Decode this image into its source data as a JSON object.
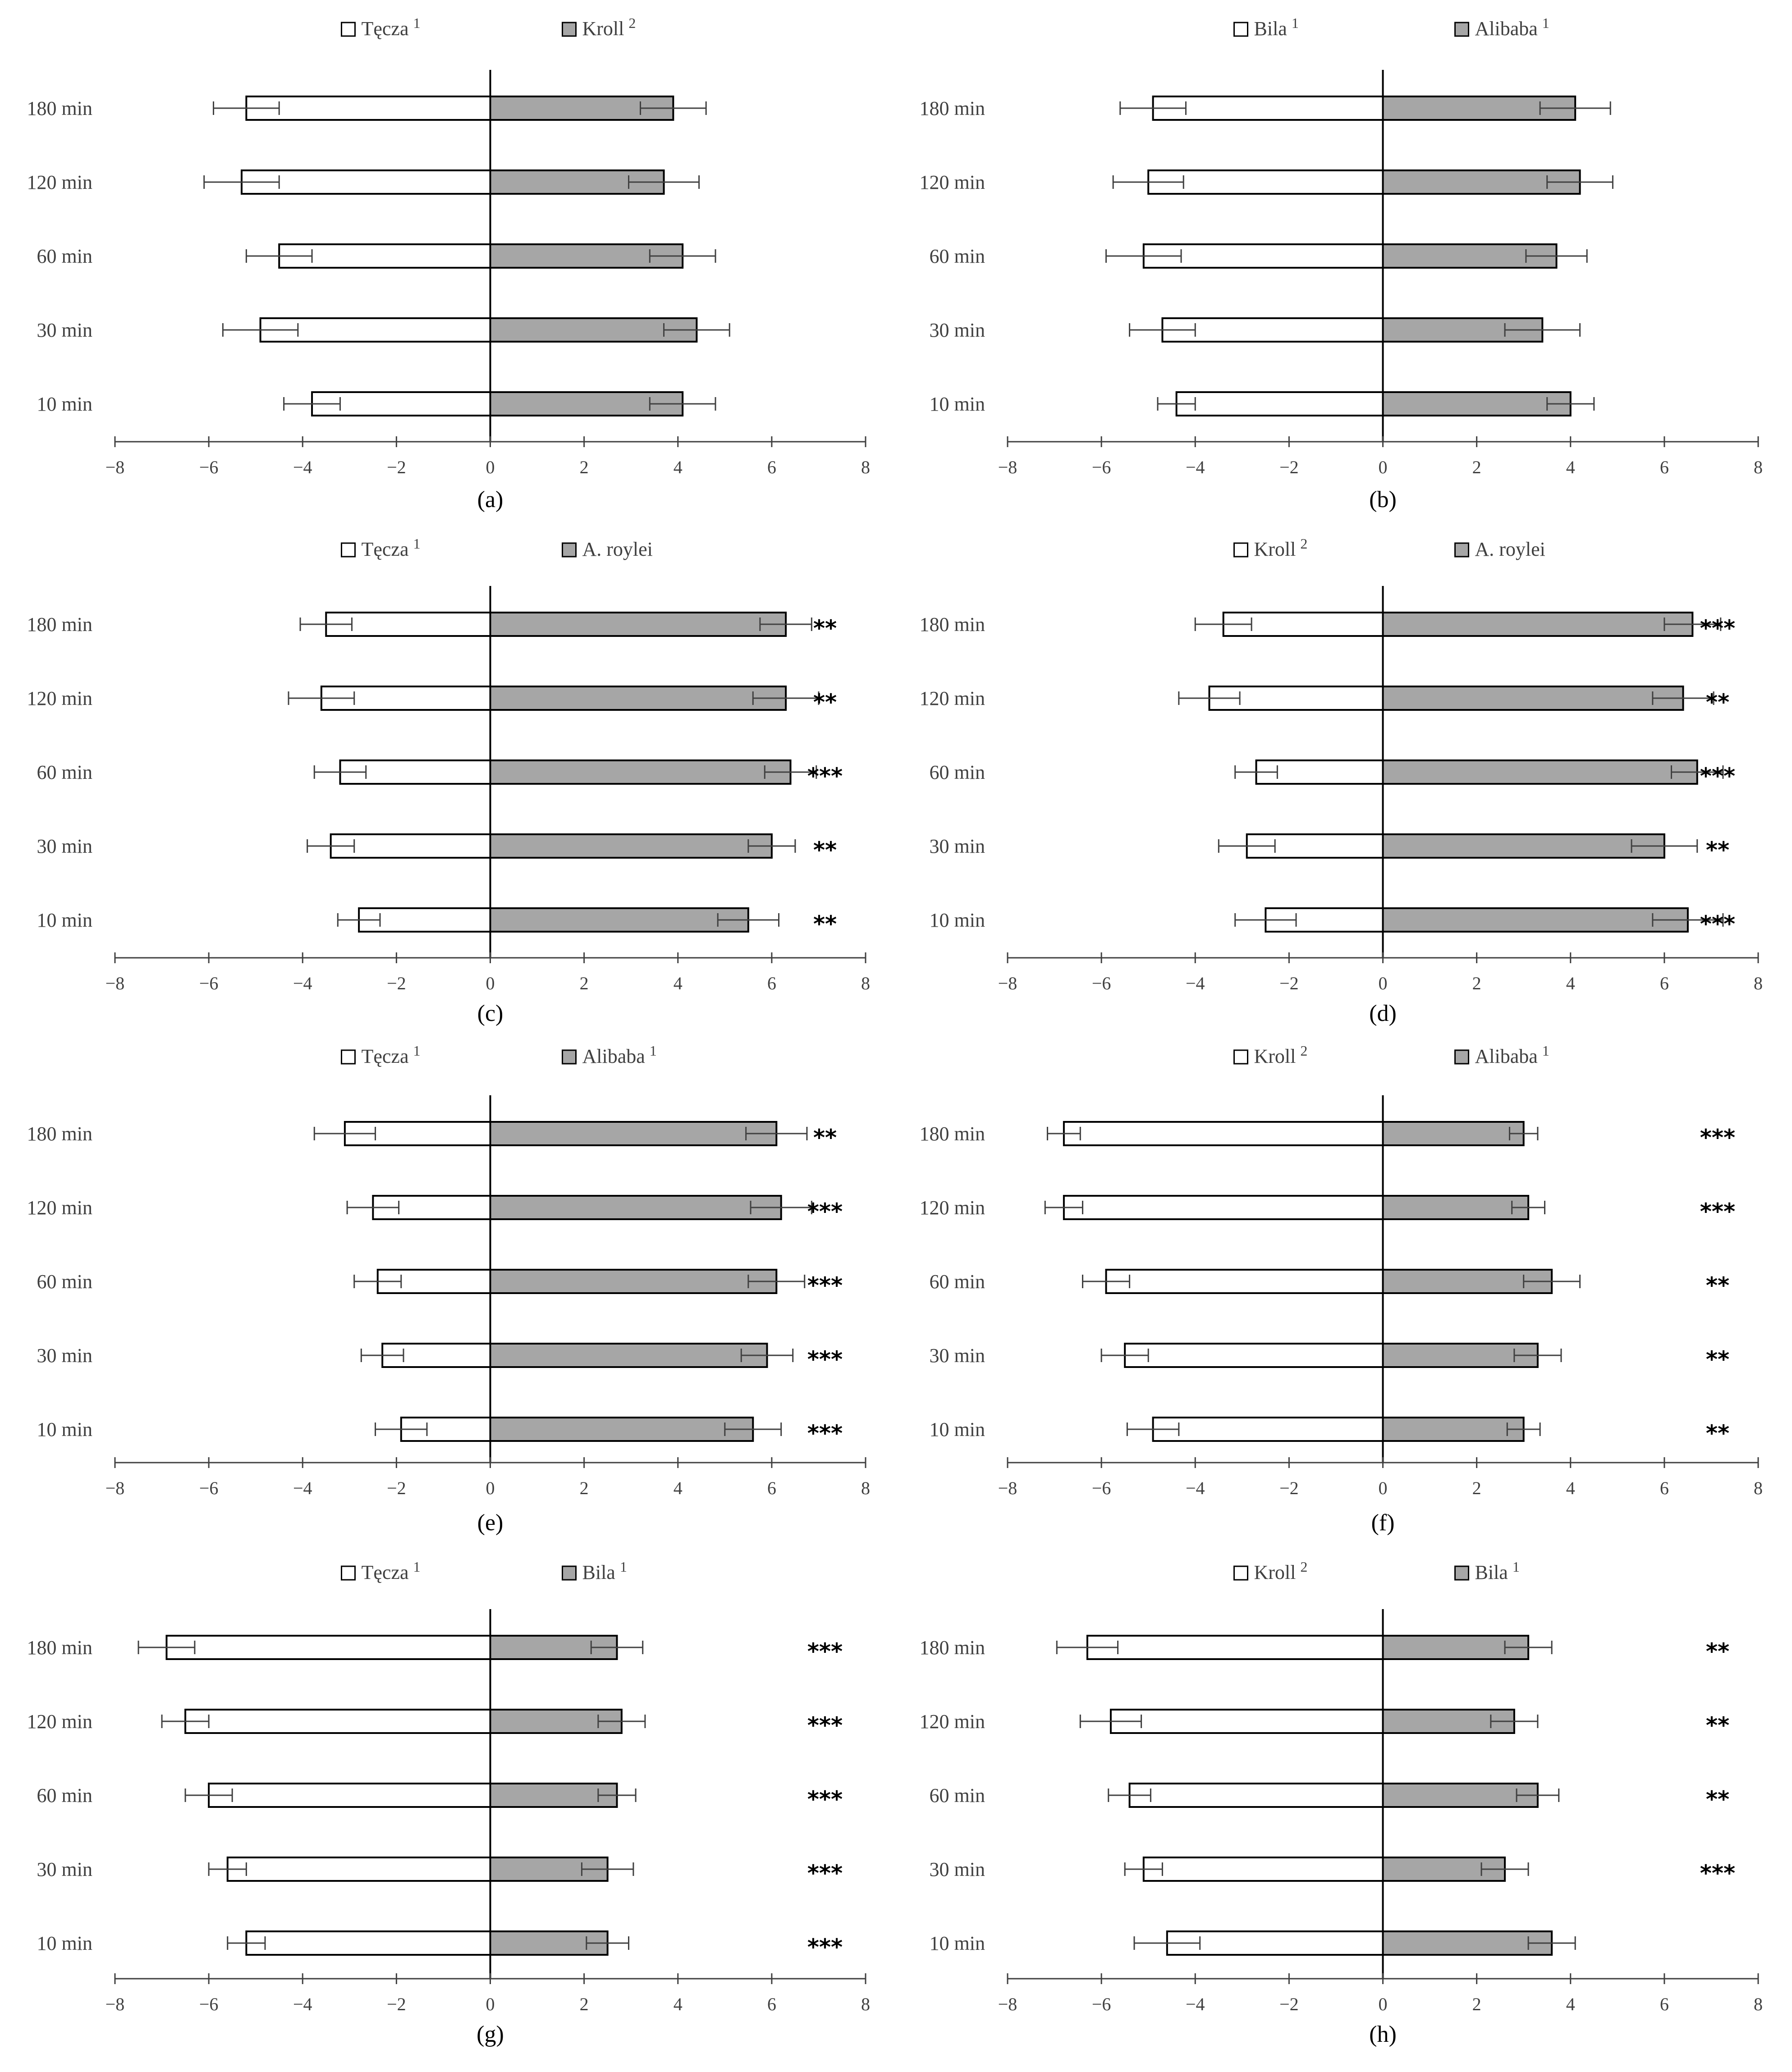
{
  "chart_data": [
    {
      "type": "bar",
      "orientation": "horizontal-diverging",
      "panel": "(a)",
      "categories": [
        "180 min",
        "120 min",
        "60 min",
        "30 min",
        "10 min"
      ],
      "series": [
        {
          "name": "Tęcza",
          "sup": "1",
          "fill": "white",
          "values": [
            -5.2,
            -5.3,
            -4.5,
            -4.9,
            -3.8
          ],
          "errors": [
            0.7,
            0.8,
            0.7,
            0.8,
            0.6
          ]
        },
        {
          "name": "Kroll",
          "sup": "2",
          "fill": "gray",
          "values": [
            3.9,
            3.7,
            4.1,
            4.4,
            4.1
          ],
          "errors": [
            0.7,
            0.75,
            0.7,
            0.7,
            0.7
          ]
        }
      ],
      "significance": [
        "",
        "",
        "",
        "",
        ""
      ],
      "xlim": [
        -8,
        8
      ],
      "xticks": [
        "−8",
        "−6",
        "−4",
        "−2",
        "0",
        "2",
        "4",
        "6",
        "8"
      ],
      "grid": false,
      "legend": "top-center"
    },
    {
      "type": "bar",
      "orientation": "horizontal-diverging",
      "panel": "(b)",
      "categories": [
        "180 min",
        "120 min",
        "60 min",
        "30 min",
        "10 min"
      ],
      "series": [
        {
          "name": "Bila",
          "sup": "1",
          "fill": "white",
          "values": [
            -4.9,
            -5.0,
            -5.1,
            -4.7,
            -4.4
          ],
          "errors": [
            0.7,
            0.75,
            0.8,
            0.7,
            0.4
          ]
        },
        {
          "name": "Alibaba",
          "sup": "1",
          "fill": "gray",
          "values": [
            4.1,
            4.2,
            3.7,
            3.4,
            4.0
          ],
          "errors": [
            0.75,
            0.7,
            0.65,
            0.8,
            0.5
          ]
        }
      ],
      "significance": [
        "",
        "",
        "",
        "",
        ""
      ],
      "xlim": [
        -8,
        8
      ],
      "xticks": [
        "−8",
        "−6",
        "−4",
        "−2",
        "0",
        "2",
        "4",
        "6",
        "8"
      ],
      "grid": false,
      "legend": "top-center"
    },
    {
      "type": "bar",
      "orientation": "horizontal-diverging",
      "panel": "(c)",
      "categories": [
        "180 min",
        "120 min",
        "60 min",
        "30 min",
        "10 min"
      ],
      "series": [
        {
          "name": "Tęcza",
          "sup": "1",
          "fill": "white",
          "values": [
            -3.5,
            -3.6,
            -3.2,
            -3.4,
            -2.8
          ],
          "errors": [
            0.55,
            0.7,
            0.55,
            0.5,
            0.45
          ]
        },
        {
          "name": "A. roylei",
          "sup": "",
          "fill": "gray",
          "values": [
            6.3,
            6.3,
            6.4,
            6.0,
            5.5
          ],
          "errors": [
            0.55,
            0.7,
            0.55,
            0.5,
            0.65
          ]
        }
      ],
      "significance": [
        "**",
        "**",
        "***",
        "**",
        "**"
      ],
      "xlim": [
        -8,
        8
      ],
      "xticks": [
        "−8",
        "−6",
        "−4",
        "−2",
        "0",
        "2",
        "4",
        "6",
        "8"
      ],
      "grid": false,
      "legend": "top-center"
    },
    {
      "type": "bar",
      "orientation": "horizontal-diverging",
      "panel": "(d)",
      "categories": [
        "180 min",
        "120 min",
        "60 min",
        "30 min",
        "10 min"
      ],
      "series": [
        {
          "name": "Kroll",
          "sup": "2",
          "fill": "white",
          "values": [
            -3.4,
            -3.7,
            -2.7,
            -2.9,
            -2.5
          ],
          "errors": [
            0.6,
            0.65,
            0.45,
            0.6,
            0.65
          ]
        },
        {
          "name": "A. roylei",
          "sup": "",
          "fill": "gray",
          "values": [
            6.6,
            6.4,
            6.7,
            6.0,
            6.5
          ],
          "errors": [
            0.6,
            0.65,
            0.55,
            0.7,
            0.75
          ]
        }
      ],
      "significance": [
        "***",
        "**",
        "***",
        "**",
        "***"
      ],
      "xlim": [
        -8,
        8
      ],
      "xticks": [
        "−8",
        "−6",
        "−4",
        "−2",
        "0",
        "2",
        "4",
        "6",
        "8"
      ],
      "grid": false,
      "legend": "top-center"
    },
    {
      "type": "bar",
      "orientation": "horizontal-diverging",
      "panel": "(e)",
      "categories": [
        "180 min",
        "120 min",
        "60 min",
        "30 min",
        "10 min"
      ],
      "series": [
        {
          "name": "Tęcza",
          "sup": "1",
          "fill": "white",
          "values": [
            -3.1,
            -2.5,
            -2.4,
            -2.3,
            -1.9
          ],
          "errors": [
            0.65,
            0.55,
            0.5,
            0.45,
            0.55
          ]
        },
        {
          "name": "Alibaba",
          "sup": "1",
          "fill": "gray",
          "values": [
            6.1,
            6.2,
            6.1,
            5.9,
            5.6
          ],
          "errors": [
            0.65,
            0.65,
            0.6,
            0.55,
            0.6
          ]
        }
      ],
      "significance": [
        "**",
        "***",
        "***",
        "***",
        "***"
      ],
      "xlim": [
        -8,
        8
      ],
      "xticks": [
        "−8",
        "−6",
        "−4",
        "−2",
        "0",
        "2",
        "4",
        "6",
        "8"
      ],
      "grid": false,
      "legend": "top-center"
    },
    {
      "type": "bar",
      "orientation": "horizontal-diverging",
      "panel": "(f)",
      "categories": [
        "180 min",
        "120 min",
        "60 min",
        "30 min",
        "10 min"
      ],
      "series": [
        {
          "name": "Kroll",
          "sup": "2",
          "fill": "white",
          "values": [
            -6.8,
            -6.8,
            -5.9,
            -5.5,
            -4.9
          ],
          "errors": [
            0.35,
            0.4,
            0.5,
            0.5,
            0.55
          ]
        },
        {
          "name": "Alibaba",
          "sup": "1",
          "fill": "gray",
          "values": [
            3.0,
            3.1,
            3.6,
            3.3,
            3.0
          ],
          "errors": [
            0.3,
            0.35,
            0.6,
            0.5,
            0.35
          ]
        }
      ],
      "significance": [
        "***",
        "***",
        "**",
        "**",
        "**"
      ],
      "xlim": [
        -8,
        8
      ],
      "xticks": [
        "−8",
        "−6",
        "−4",
        "−2",
        "0",
        "2",
        "4",
        "6",
        "8"
      ],
      "grid": false,
      "legend": "top-center"
    },
    {
      "type": "bar",
      "orientation": "horizontal-diverging",
      "panel": "(g)",
      "categories": [
        "180 min",
        "120 min",
        "60 min",
        "30 min",
        "10 min"
      ],
      "series": [
        {
          "name": "Tęcza",
          "sup": "1",
          "fill": "white",
          "values": [
            -6.9,
            -6.5,
            -6.0,
            -5.6,
            -5.2
          ],
          "errors": [
            0.6,
            0.5,
            0.5,
            0.4,
            0.4
          ]
        },
        {
          "name": "Bila",
          "sup": "1",
          "fill": "gray",
          "values": [
            2.7,
            2.8,
            2.7,
            2.5,
            2.5
          ],
          "errors": [
            0.55,
            0.5,
            0.4,
            0.55,
            0.45
          ]
        }
      ],
      "significance": [
        "***",
        "***",
        "***",
        "***",
        "***"
      ],
      "xlim": [
        -8,
        8
      ],
      "xticks": [
        "−8",
        "−6",
        "−4",
        "−2",
        "0",
        "2",
        "4",
        "6",
        "8"
      ],
      "grid": false,
      "legend": "top-center"
    },
    {
      "type": "bar",
      "orientation": "horizontal-diverging",
      "panel": "(h)",
      "categories": [
        "180 min",
        "120 min",
        "60 min",
        "30 min",
        "10 min"
      ],
      "series": [
        {
          "name": "Kroll",
          "sup": "2",
          "fill": "white",
          "values": [
            -6.3,
            -5.8,
            -5.4,
            -5.1,
            -4.6
          ],
          "errors": [
            0.65,
            0.65,
            0.45,
            0.4,
            0.7
          ]
        },
        {
          "name": "Bila",
          "sup": "1",
          "fill": "gray",
          "values": [
            3.1,
            2.8,
            3.3,
            2.6,
            3.6
          ],
          "errors": [
            0.5,
            0.5,
            0.45,
            0.5,
            0.5
          ]
        }
      ],
      "significance": [
        "**",
        "**",
        "**",
        "***",
        ""
      ],
      "xlim": [
        -8,
        8
      ],
      "xticks": [
        "−8",
        "−6",
        "−4",
        "−2",
        "0",
        "2",
        "4",
        "6",
        "8"
      ],
      "grid": false,
      "legend": "top-center"
    }
  ],
  "colors": {
    "white_bar": "#ffffff",
    "gray_bar": "#a6a6a6",
    "axis": "#404040",
    "text": "#404040"
  }
}
